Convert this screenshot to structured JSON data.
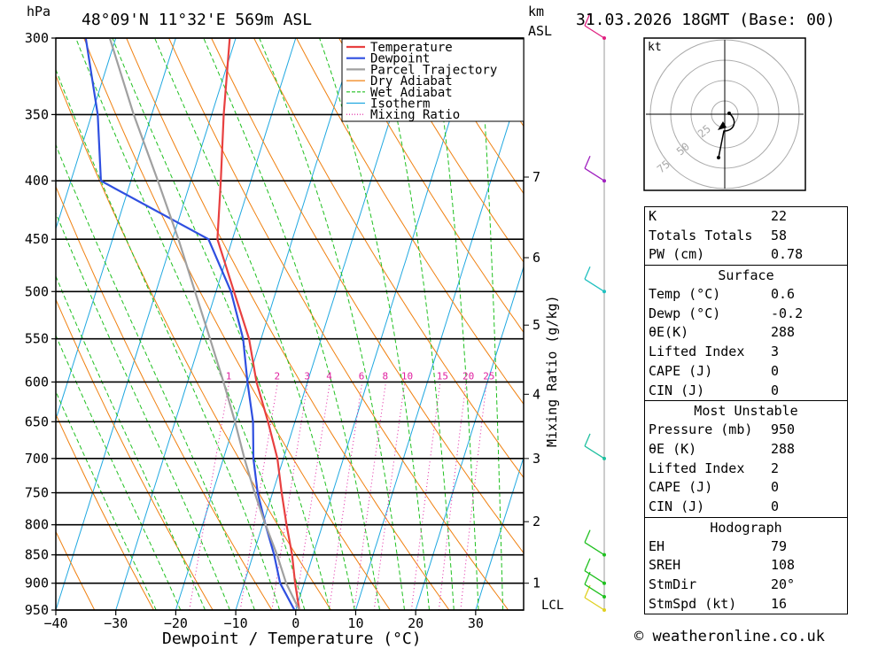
{
  "header": {
    "unit_left": "hPa",
    "location": "48°09'N  11°32'E  569m  ASL",
    "km_label": "km",
    "asl_label": "ASL",
    "datetime": "31.03.2026  18GMT  (Base: 00)"
  },
  "legend": [
    {
      "label": "Temperature",
      "color": "#e84040",
      "style": "solid"
    },
    {
      "label": "Dewpoint",
      "color": "#2f4fe0",
      "style": "solid"
    },
    {
      "label": "Parcel Trajectory",
      "color": "#a0a0a0",
      "style": "solid"
    },
    {
      "label": "Dry Adiabat",
      "color": "#f08010",
      "style": "solid"
    },
    {
      "label": "Wet Adiabat",
      "color": "#20c020",
      "style": "dashed"
    },
    {
      "label": "Isotherm",
      "color": "#20a8e0",
      "style": "solid"
    },
    {
      "label": "Mixing Ratio",
      "color": "#e020a0",
      "style": "dotted"
    }
  ],
  "chart_data": {
    "type": "line",
    "title": "",
    "xlabel": "Dewpoint / Temperature (°C)",
    "ylabel": "hPa",
    "xlim": [
      -40,
      38
    ],
    "ylim": [
      950,
      300
    ],
    "x_ticks": [
      -40,
      -30,
      -20,
      -10,
      0,
      10,
      20,
      30
    ],
    "pressure_levels": [
      300,
      350,
      400,
      450,
      500,
      550,
      600,
      650,
      700,
      750,
      800,
      850,
      900,
      950
    ],
    "height_km_ticks": [
      {
        "label": "1",
        "p": 900
      },
      {
        "label": "2",
        "p": 795
      },
      {
        "label": "3",
        "p": 700
      },
      {
        "label": "4",
        "p": 615
      },
      {
        "label": "5",
        "p": 535
      },
      {
        "label": "6",
        "p": 467
      },
      {
        "label": "7",
        "p": 397
      }
    ],
    "lcl_label": "LCL",
    "mixing_ratio_axis_label": "Mixing Ratio (g/kg)",
    "mixing_ratio_values": [
      "1",
      "2",
      "3",
      "4",
      "6",
      "8",
      "10",
      "15",
      "20",
      "25"
    ],
    "mixing_ratio_label_p": 600,
    "series": [
      {
        "name": "Temperature",
        "color": "#e84040",
        "points": [
          [
            950,
            0.6
          ],
          [
            900,
            -1.5
          ],
          [
            850,
            -3.5
          ],
          [
            800,
            -6
          ],
          [
            750,
            -8.5
          ],
          [
            700,
            -11
          ],
          [
            650,
            -14.5
          ],
          [
            600,
            -18.5
          ],
          [
            550,
            -22
          ],
          [
            500,
            -27
          ],
          [
            450,
            -32.5
          ],
          [
            400,
            -35
          ],
          [
            350,
            -38
          ],
          [
            300,
            -41
          ]
        ]
      },
      {
        "name": "Dewpoint",
        "color": "#2f4fe0",
        "points": [
          [
            950,
            -0.2
          ],
          [
            900,
            -4
          ],
          [
            850,
            -6.5
          ],
          [
            800,
            -9.5
          ],
          [
            750,
            -12.5
          ],
          [
            700,
            -15
          ],
          [
            650,
            -17
          ],
          [
            600,
            -20
          ],
          [
            550,
            -23
          ],
          [
            500,
            -27.5
          ],
          [
            450,
            -34
          ],
          [
            400,
            -55
          ],
          [
            350,
            -59
          ],
          [
            300,
            -65
          ]
        ]
      },
      {
        "name": "Parcel Trajectory",
        "color": "#a0a0a0",
        "points": [
          [
            950,
            0.6
          ],
          [
            900,
            -3
          ],
          [
            850,
            -6
          ],
          [
            800,
            -9.5
          ],
          [
            750,
            -13
          ],
          [
            700,
            -16.5
          ],
          [
            650,
            -20
          ],
          [
            600,
            -24
          ],
          [
            550,
            -28.5
          ],
          [
            500,
            -33.5
          ],
          [
            450,
            -39
          ],
          [
            400,
            -45.5
          ],
          [
            350,
            -53
          ],
          [
            300,
            -61
          ]
        ]
      }
    ]
  },
  "hodograph": {
    "unit": "kt",
    "ring_labels": [
      "25",
      "50",
      "75"
    ]
  },
  "indices": {
    "rows_top": [
      {
        "label": "K",
        "value": "22"
      },
      {
        "label": "Totals Totals",
        "value": "58"
      },
      {
        "label": "PW (cm)",
        "value": "0.78"
      }
    ],
    "surface_title": "Surface",
    "surface": [
      {
        "label": "Temp (°C)",
        "value": "0.6"
      },
      {
        "label": "Dewp (°C)",
        "value": "-0.2"
      },
      {
        "label": "θE(K)",
        "value": "288"
      },
      {
        "label": "Lifted Index",
        "value": "3"
      },
      {
        "label": "CAPE (J)",
        "value": "0"
      },
      {
        "label": "CIN (J)",
        "value": "0"
      }
    ],
    "mu_title": "Most Unstable",
    "most_unstable": [
      {
        "label": "Pressure (mb)",
        "value": "950"
      },
      {
        "label": "θE (K)",
        "value": "288"
      },
      {
        "label": "Lifted Index",
        "value": "2"
      },
      {
        "label": "CAPE (J)",
        "value": "0"
      },
      {
        "label": "CIN (J)",
        "value": "0"
      }
    ],
    "hodo_title": "Hodograph",
    "hodo": [
      {
        "label": "EH",
        "value": "79"
      },
      {
        "label": "SREH",
        "value": "108"
      },
      {
        "label": "StmDir",
        "value": "20°"
      },
      {
        "label": "StmSpd (kt)",
        "value": "16"
      }
    ]
  },
  "footer": "© weatheronline.co.uk"
}
